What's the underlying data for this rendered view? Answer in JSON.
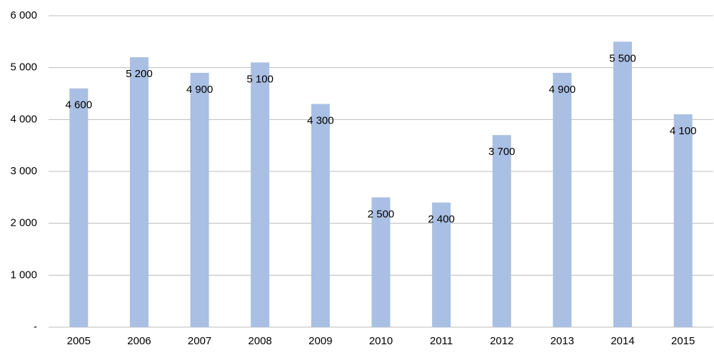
{
  "chart_data": {
    "type": "bar",
    "categories": [
      "2005",
      "2006",
      "2007",
      "2008",
      "2009",
      "2010",
      "2011",
      "2012",
      "2013",
      "2014",
      "2015"
    ],
    "values": [
      4600,
      5200,
      4900,
      5100,
      4300,
      2500,
      2400,
      3700,
      4900,
      5500,
      4100
    ],
    "value_labels": [
      "4 600",
      "5 200",
      "4 900",
      "5 100",
      "4 300",
      "2 500",
      "2 400",
      "3 700",
      "4 900",
      "5 500",
      "4 100"
    ],
    "color": "#a9bfe3",
    "ylim": [
      0,
      6000
    ],
    "yticks": [
      {
        "value": 0,
        "label": "-"
      },
      {
        "value": 1000,
        "label": "1 000"
      },
      {
        "value": 2000,
        "label": "2 000"
      },
      {
        "value": 3000,
        "label": "3 000"
      },
      {
        "value": 4000,
        "label": "4 000"
      },
      {
        "value": 5000,
        "label": "5 000"
      },
      {
        "value": 6000,
        "label": "6 000"
      }
    ],
    "grid": true
  }
}
